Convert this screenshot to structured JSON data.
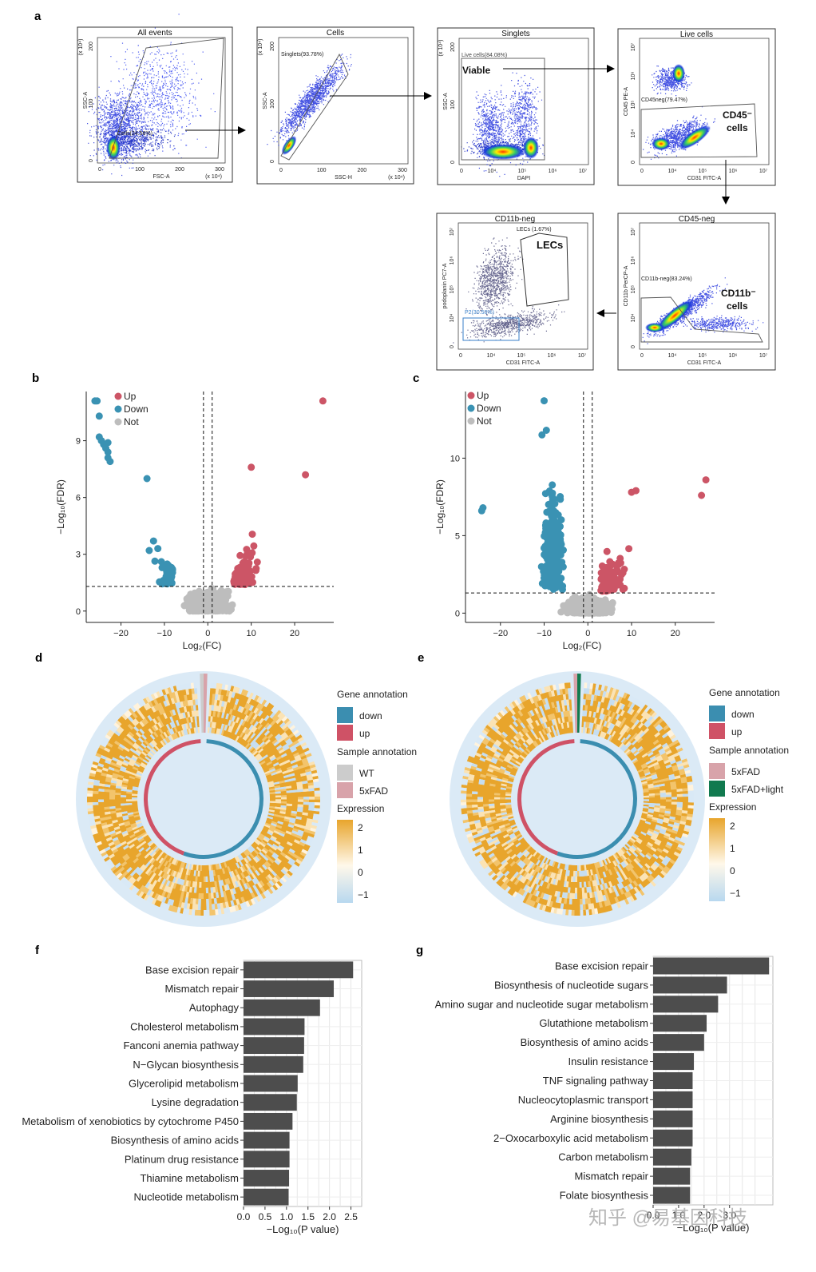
{
  "panels": {
    "a": "a",
    "b": "b",
    "c": "c",
    "d": "d",
    "e": "e",
    "f": "f",
    "g": "g"
  },
  "flow": [
    {
      "title": "All events",
      "gate": "Cells(24.56%)",
      "xlabel": "FSC-A",
      "ylabel": "SSC-A",
      "xticks": [
        "0",
        "100",
        "200",
        "300"
      ],
      "yticks": [
        "0",
        "100",
        "200"
      ],
      "xunit": "(x 10⁴)",
      "yunit": "(x 10⁴)"
    },
    {
      "title": "Cells",
      "gate": "Singlets(93.78%)",
      "xlabel": "SSC-H",
      "ylabel": "SSC-A",
      "xticks": [
        "0",
        "100",
        "200",
        "300"
      ],
      "yticks": [
        "0",
        "100",
        "200"
      ],
      "xunit": "(x 10⁴)",
      "yunit": "(x 10⁴)"
    },
    {
      "title": "Singlets",
      "gate": "Live cells(84.08%)",
      "big": "Viable",
      "xlabel": "DAPI",
      "ylabel": "SSC-A",
      "xticks": [
        "0",
        "10⁴",
        "10⁵",
        "10⁶",
        "10⁷"
      ],
      "yticks": [
        "0",
        "100",
        "200"
      ],
      "yunit": "(x 10⁴)"
    },
    {
      "title": "Live cells",
      "gate": "CD45neg(79.47%)",
      "big1": "CD45⁻",
      "big2": "cells",
      "xlabel": "CD31 FITC-A",
      "ylabel": "CD45 PE-A",
      "xticks": [
        "0",
        "10⁴",
        "10⁵",
        "10⁶",
        "10⁷"
      ],
      "yticks": [
        "0",
        "10⁴",
        "10⁵",
        "10⁶",
        "10⁷"
      ]
    },
    {
      "title": "CD45-neg",
      "gate": "CD11b-neg(83.24%)",
      "big1": "CD11b⁻",
      "big2": "cells",
      "xlabel": "CD31 FITC-A",
      "ylabel": "CD11b PerCP-A",
      "xticks": [
        "0",
        "10⁴",
        "10⁵",
        "10⁶",
        "10⁷"
      ],
      "yticks": [
        "0",
        "10⁴",
        "10⁵",
        "10⁶",
        "10⁷"
      ]
    },
    {
      "title": "CD11b-neg",
      "gate": "LECs (1.67%)",
      "big": "LECs",
      "gate2": "P2(30.50%)",
      "xlabel": "CD31 FITC-A",
      "ylabel": "podoplanin PC7-A",
      "xticks": [
        "0",
        "10⁴",
        "10⁵",
        "10⁶",
        "10⁷"
      ],
      "yticks": [
        "0",
        "10⁴",
        "10⁵",
        "10⁶",
        "10⁷"
      ]
    }
  ],
  "volcano_b": {
    "legend": [
      "Up",
      "Down",
      "Not"
    ],
    "xlabel": "Log₂(FC)",
    "ylabel": "−Log₁₀(FDR)",
    "xticks": [
      "−20",
      "−10",
      "0",
      "10",
      "20"
    ],
    "yticks": [
      "0",
      "3",
      "6",
      "9"
    ],
    "colors": {
      "up": "#cc5566",
      "down": "#3a92b3",
      "not": "#bdbdbd"
    }
  },
  "volcano_c": {
    "legend": [
      "Up",
      "Down",
      "Not"
    ],
    "xlabel": "Log₂(FC)",
    "ylabel": "−Log₁₀(FDR)",
    "xticks": [
      "−20",
      "−10",
      "0",
      "10",
      "20"
    ],
    "yticks": [
      "0",
      "5",
      "10"
    ],
    "colors": {
      "up": "#cc5566",
      "down": "#3a92b3",
      "not": "#bdbdbd"
    }
  },
  "circos_d": {
    "gene_annotation_title": "Gene annotation",
    "gene": [
      "down",
      "up"
    ],
    "sample_annotation_title": "Sample annotation",
    "samples": [
      "WT",
      "5xFAD"
    ],
    "expression_title": "Expression",
    "expr_ticks": [
      "2",
      "1",
      "0",
      "−1"
    ],
    "colors": {
      "down": "#3b8eb0",
      "up": "#cf5266",
      "s1": "#cccccc",
      "s2": "#d8a3aa",
      "high": "#e8a52c",
      "low": "#cfe3f3"
    }
  },
  "circos_e": {
    "gene_annotation_title": "Gene annotation",
    "gene": [
      "down",
      "up"
    ],
    "sample_annotation_title": "Sample annotation",
    "samples": [
      "5xFAD",
      "5xFAD+light"
    ],
    "expression_title": "Expression",
    "expr_ticks": [
      "2",
      "1",
      "0",
      "−1"
    ],
    "colors": {
      "down": "#3b8eb0",
      "up": "#cf5266",
      "s1": "#d8a3aa",
      "s2": "#117a4f",
      "high": "#e8a52c",
      "low": "#cfe3f3"
    }
  },
  "chart_data": [
    {
      "type": "bar",
      "orientation": "horizontal",
      "categories": [
        "Base excision repair",
        "Mismatch repair",
        "Autophagy",
        "Cholesterol metabolism",
        "Fanconi anemia pathway",
        "N−Glycan biosynthesis",
        "Glycerolipid metabolism",
        "Lysine degradation",
        "Metabolism of xenobiotics by cytochrome P450",
        "Biosynthesis of amino acids",
        "Platinum drug resistance",
        "Thiamine metabolism",
        "Nucleotide metabolism"
      ],
      "values": [
        2.55,
        2.1,
        1.78,
        1.42,
        1.41,
        1.39,
        1.26,
        1.24,
        1.14,
        1.07,
        1.07,
        1.06,
        1.05
      ],
      "xlabel": "−Log₁₀(P value)",
      "xticks": [
        "0.0",
        "0.5",
        "1.0",
        "1.5",
        "2.0",
        "2.5"
      ],
      "xlim": [
        0,
        2.75
      ],
      "grid": true,
      "bar_color": "#4d4d4d"
    },
    {
      "type": "bar",
      "orientation": "horizontal",
      "categories": [
        "Base excision repair",
        "Biosynthesis of nucleotide sugars",
        "Amino sugar and nucleotide sugar metabolism",
        "Glutathione metabolism",
        "Biosynthesis of amino acids",
        "Insulin resistance",
        "TNF signaling pathway",
        "Nucleocytoplasmic transport",
        "Arginine biosynthesis",
        "2−Oxocarboxylic acid metabolism",
        "Carbon metabolism",
        "Mismatch repair",
        "Folate biosynthesis"
      ],
      "values": [
        4.55,
        2.9,
        2.55,
        2.1,
        2.0,
        1.6,
        1.55,
        1.55,
        1.55,
        1.55,
        1.5,
        1.45,
        1.45
      ],
      "xlabel": "−Log₁₀(P value)",
      "xticks": [
        "0.0",
        "1.0",
        "2.0",
        "3.0"
      ],
      "xlim": [
        0,
        4.7
      ],
      "grid": true,
      "bar_color": "#4d4d4d"
    }
  ],
  "watermark": "知乎 @易基因科技"
}
